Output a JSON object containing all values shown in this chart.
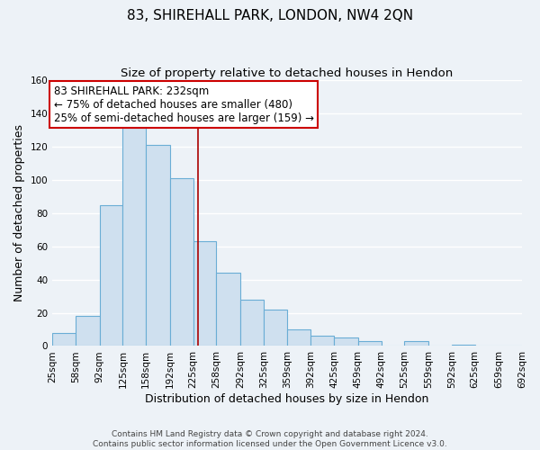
{
  "title": "83, SHIREHALL PARK, LONDON, NW4 2QN",
  "subtitle": "Size of property relative to detached houses in Hendon",
  "xlabel": "Distribution of detached houses by size in Hendon",
  "ylabel": "Number of detached properties",
  "bar_edges": [
    25,
    58,
    92,
    125,
    158,
    192,
    225,
    258,
    292,
    325,
    359,
    392,
    425,
    459,
    492,
    525,
    559,
    592,
    625,
    659,
    692
  ],
  "bar_heights": [
    8,
    18,
    85,
    133,
    121,
    101,
    63,
    44,
    28,
    22,
    10,
    6,
    5,
    3,
    0,
    3,
    0,
    1,
    0,
    0
  ],
  "bar_color": "#cfe0ef",
  "bar_edge_color": "#6aadd5",
  "vline_x": 232,
  "vline_color": "#aa0000",
  "annotation_line1": "83 SHIREHALL PARK: 232sqm",
  "annotation_line2": "← 75% of detached houses are smaller (480)",
  "annotation_line3": "25% of semi-detached houses are larger (159) →",
  "annotation_box_color": "#ffffff",
  "annotation_box_edge_color": "#cc0000",
  "ylim": [
    0,
    160
  ],
  "yticks": [
    0,
    20,
    40,
    60,
    80,
    100,
    120,
    140,
    160
  ],
  "tick_labels": [
    "25sqm",
    "58sqm",
    "92sqm",
    "125sqm",
    "158sqm",
    "192sqm",
    "225sqm",
    "258sqm",
    "292sqm",
    "325sqm",
    "359sqm",
    "392sqm",
    "425sqm",
    "459sqm",
    "492sqm",
    "525sqm",
    "559sqm",
    "592sqm",
    "625sqm",
    "659sqm",
    "692sqm"
  ],
  "footer_text": "Contains HM Land Registry data © Crown copyright and database right 2024.\nContains public sector information licensed under the Open Government Licence v3.0.",
  "bg_color": "#edf2f7",
  "grid_color": "#ffffff",
  "title_fontsize": 11,
  "subtitle_fontsize": 9.5,
  "axis_label_fontsize": 9,
  "tick_fontsize": 7.5,
  "annotation_fontsize": 8.5,
  "footer_fontsize": 6.5
}
